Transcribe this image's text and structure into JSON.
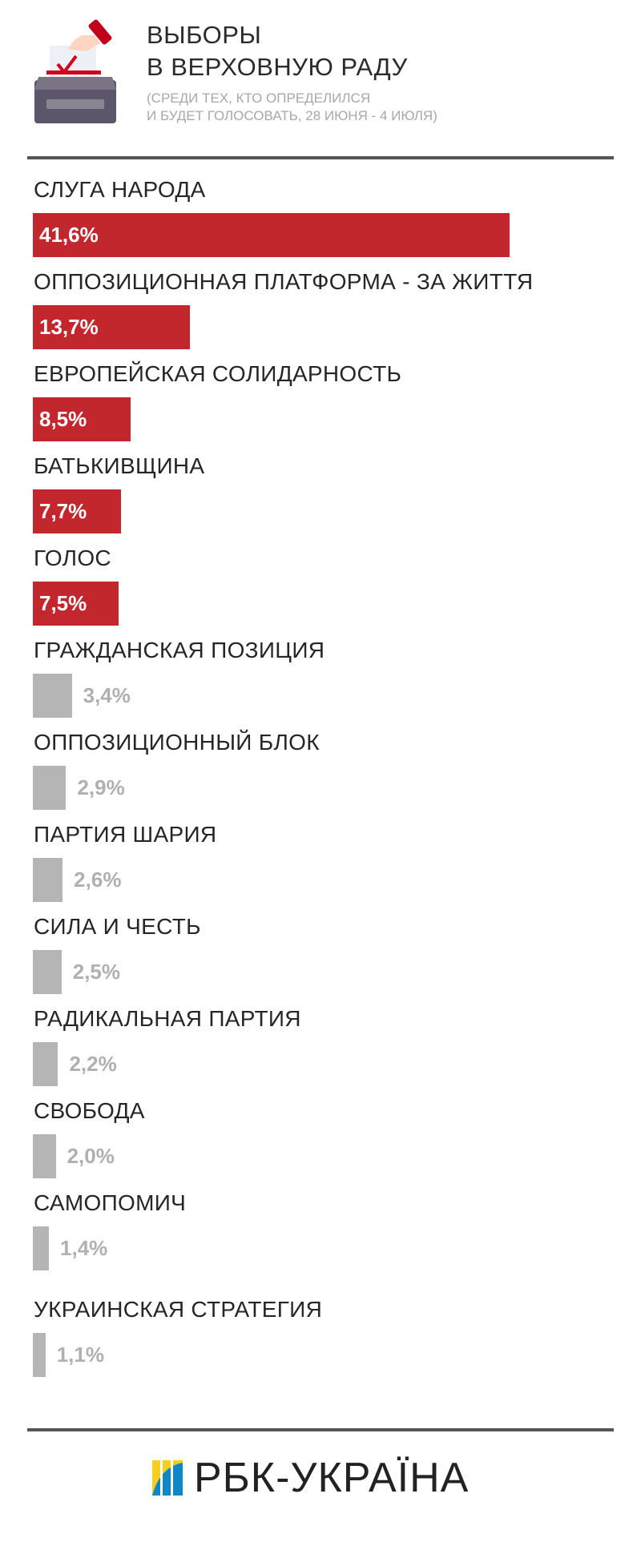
{
  "header": {
    "title_line1": "ВЫБОРЫ",
    "title_line2": "В ВЕРХОВНУЮ РАДУ",
    "subtitle_line1": "(СРЕДИ ТЕХ, КТО ОПРЕДЕЛИЛСЯ",
    "subtitle_line2": "И БУДЕТ ГОЛОСОВАТЬ, 28 ИЮНЯ - 4 ИЮЛЯ)",
    "icon": "ballot-box-icon"
  },
  "colors": {
    "highlight": "#c1272d",
    "other": "#b5b5b5",
    "logo_yellow": "#f5cf1e",
    "logo_blue": "#0f86c6"
  },
  "chart_data": {
    "type": "bar",
    "orientation": "horizontal",
    "unit": "%",
    "categories": [
      "СЛУГА НАРОДА",
      "ОППОЗИЦИОННАЯ ПЛАТФОРМА - ЗА ЖИТТЯ",
      "ЕВРОПЕЙСКАЯ СОЛИДАРНОСТЬ",
      "БАТЬКИВЩИНА",
      "ГОЛОС",
      "ГРАЖДАНСКАЯ ПОЗИЦИЯ",
      "ОППОЗИЦИОННЫЙ БЛОК",
      "ПАРТИЯ ШАРИЯ",
      "СИЛА И ЧЕСТЬ",
      "РАДИКАЛЬНАЯ ПАРТИЯ",
      "СВОБОДА",
      "САМОПОМИЧ",
      "УКРАИНСКАЯ СТРАТЕГИЯ"
    ],
    "values": [
      41.6,
      13.7,
      8.5,
      7.7,
      7.5,
      3.4,
      2.9,
      2.6,
      2.5,
      2.2,
      2.0,
      1.4,
      1.1
    ],
    "value_labels": [
      "41,6%",
      "13,7%",
      "8,5%",
      "7,7%",
      "7,5%",
      "3,4%",
      "2,9%",
      "2,6%",
      "2,5%",
      "2,2%",
      "2,0%",
      "1,4%",
      "1,1%"
    ],
    "highlighted_count": 5
  },
  "footer": {
    "logo_text": "РБК-УКРАЇНА"
  }
}
